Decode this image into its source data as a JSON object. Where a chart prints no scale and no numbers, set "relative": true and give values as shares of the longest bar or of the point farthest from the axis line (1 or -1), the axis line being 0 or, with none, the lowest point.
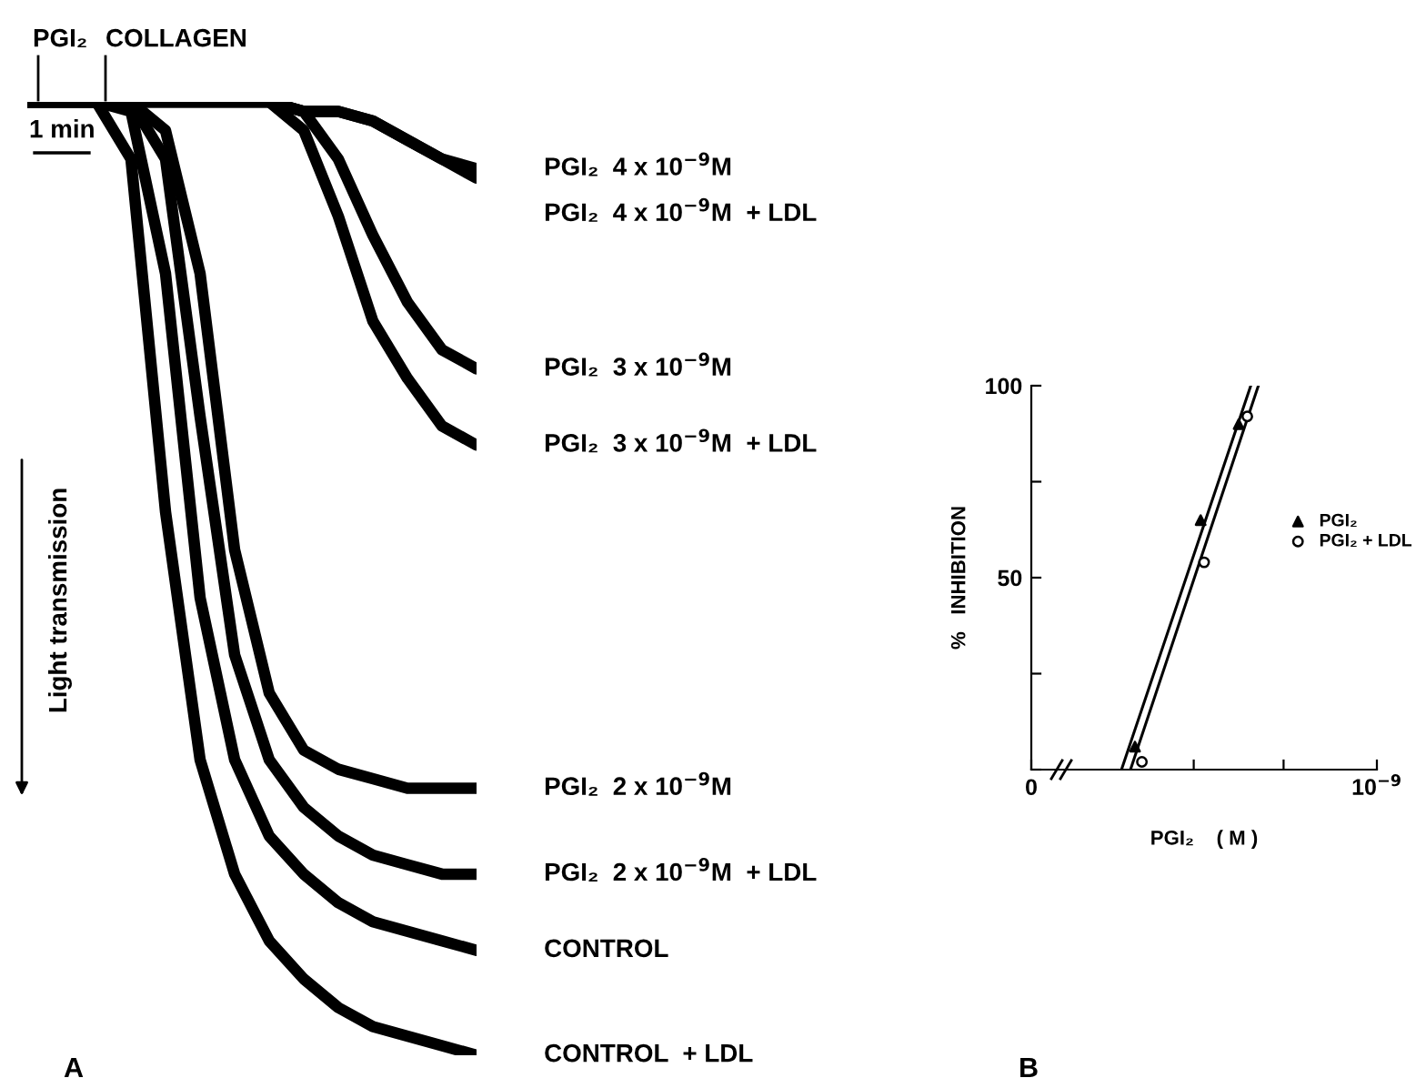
{
  "chart_data": [
    {
      "type": "line",
      "relative": true,
      "line_style": "solid",
      "ylabel": "Light transmission",
      "categories": [
        null,
        null,
        null,
        null,
        null,
        null,
        null,
        null,
        null,
        null,
        null,
        null,
        null,
        null
      ],
      "series": [
        {
          "name": "PGI₂  4 x 10$^{−9}$M",
          "color": "#000000",
          "values": [
            1,
            1,
            1,
            1,
            1,
            1,
            1,
            1,
            0.99,
            0.99,
            0.98,
            0.96,
            0.94,
            0.93
          ]
        },
        {
          "name": "PGI₂  4 x 10$^{−9}$M  + LDL",
          "color": "#000000",
          "values": [
            1,
            1,
            1,
            1,
            1,
            1,
            1,
            1,
            0.99,
            0.99,
            0.98,
            0.96,
            0.94,
            0.92
          ]
        },
        {
          "name": "PGI₂  3 x 10$^{−9}$M",
          "color": "#000000",
          "values": [
            1,
            1,
            1,
            1,
            1,
            1,
            1,
            1,
            0.99,
            0.94,
            0.86,
            0.79,
            0.74,
            0.72
          ]
        },
        {
          "name": "PGI₂  3 x 10$^{−9}$M  + LDL",
          "color": "#000000",
          "values": [
            1,
            1,
            1,
            1,
            1,
            1,
            1,
            1,
            0.97,
            0.88,
            0.77,
            0.71,
            0.66,
            0.64
          ]
        },
        {
          "name": "PGI₂  2 x 10$^{−9}$M",
          "color": "#000000",
          "values": [
            1,
            1,
            1,
            1,
            0.97,
            0.82,
            0.53,
            0.38,
            0.32,
            0.3,
            0.29,
            0.28,
            0.28,
            0.28
          ]
        },
        {
          "name": "PGI₂  2 x 10$^{−9}$M  + LDL",
          "color": "#000000",
          "values": [
            1,
            1,
            1,
            1,
            0.94,
            0.67,
            0.42,
            0.31,
            0.26,
            0.23,
            0.21,
            0.2,
            0.19,
            0.19
          ]
        },
        {
          "name": "CONTROL",
          "color": "#000000",
          "values": [
            1,
            1,
            1,
            0.99,
            0.82,
            0.48,
            0.31,
            0.23,
            0.19,
            0.16,
            0.14,
            0.13,
            0.12,
            0.11
          ]
        },
        {
          "name": "CONTROL  + LDL",
          "color": "#000000",
          "values": [
            1,
            1,
            1,
            0.94,
            0.57,
            0.31,
            0.19,
            0.12,
            0.08,
            0.05,
            0.03,
            0.02,
            0.01,
            0
          ]
        }
      ],
      "annotations": [
        "PGI₂",
        "COLLAGEN",
        "1 min",
        "A"
      ]
    },
    {
      "type": "scatter",
      "xlabel": "PGI₂    ( M )",
      "ylabel": "%   INHIBITION",
      "legend": "right",
      "xlim": [
        0,
        1e-09
      ],
      "ylim": [
        0,
        100
      ],
      "xticks": [
        {
          "value": 0,
          "label": "0"
        },
        {
          "value": 4.7e-10,
          "label": null
        },
        {
          "value": 7.3e-10,
          "label": null
        },
        {
          "value": 1e-09,
          "label": "10$^{−9}$"
        }
      ],
      "yticks": [
        {
          "value": 0,
          "label": null
        },
        {
          "value": 25,
          "label": null
        },
        50,
        {
          "value": 75,
          "label": null
        },
        100
      ],
      "series": [
        {
          "name": "PGI₂",
          "color": "#000000",
          "marker": "triangle",
          "x": [
            3e-10,
            4.9e-10,
            6e-10
          ],
          "values": [
            6,
            65,
            90
          ]
        },
        {
          "name": "PGI₂ + LDL",
          "color": "#000000",
          "marker": "circle",
          "x": [
            3.2e-10,
            5e-10,
            6.25e-10
          ],
          "values": [
            2,
            54,
            92
          ]
        },
        {
          "type": "line",
          "color": "#000000",
          "x": [
            2.61e-10,
            6.35e-10
          ],
          "values": [
            0,
            100
          ]
        },
        {
          "type": "line",
          "color": "#000000",
          "x": [
            2.87e-10,
            6.57e-10
          ],
          "values": [
            0,
            100
          ]
        }
      ],
      "annotations": [
        "B"
      ]
    }
  ]
}
